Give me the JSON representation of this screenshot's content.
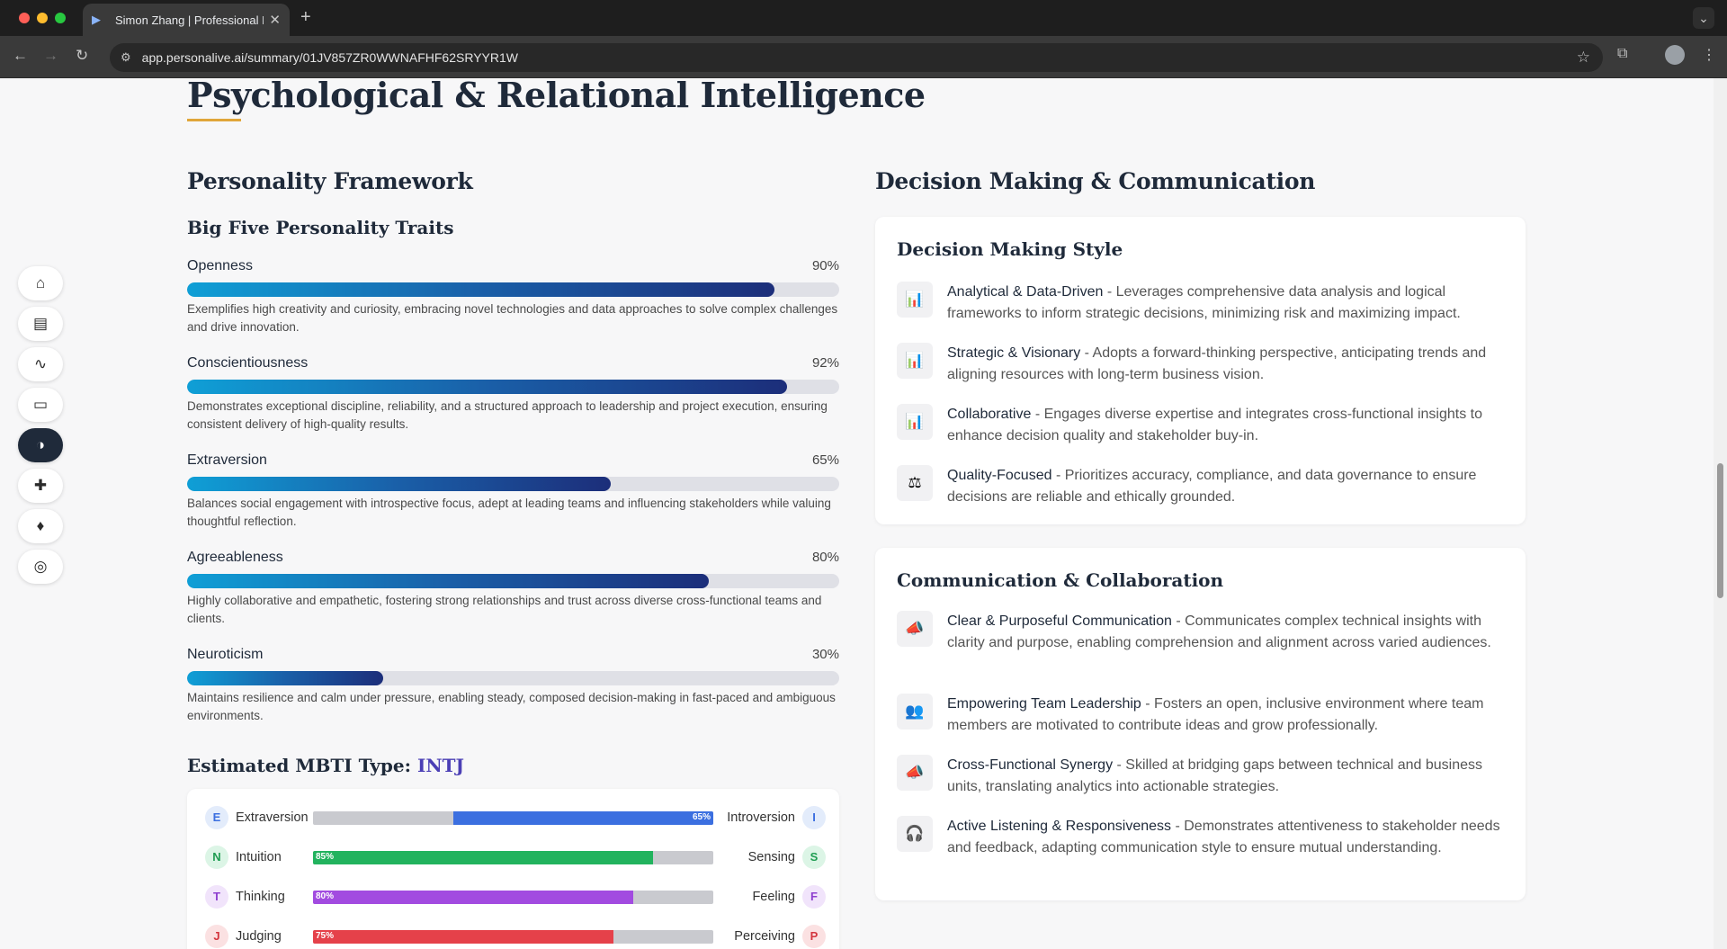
{
  "browser": {
    "tab_title": "Simon Zhang | Professional P",
    "url": "app.personalive.ai/summary/01JV857ZR0WWNAFHF62SRYYR1W"
  },
  "page": {
    "title": "Psychological & Relational Intelligence",
    "left_section_title": "Personality Framework",
    "right_section_title": "Decision Making & Communication",
    "big_five_title": "Big Five Personality Traits",
    "traits": [
      {
        "name": "Openness",
        "pct_label": "90%",
        "value": 90,
        "desc": "Exemplifies high creativity and curiosity, embracing novel technologies and data approaches to solve complex challenges and drive innovation."
      },
      {
        "name": "Conscientiousness",
        "pct_label": "92%",
        "value": 92,
        "desc": "Demonstrates exceptional discipline, reliability, and a structured approach to leadership and project execution, ensuring consistent delivery of high-quality results."
      },
      {
        "name": "Extraversion",
        "pct_label": "65%",
        "value": 65,
        "desc": "Balances social engagement with introspective focus, adept at leading teams and influencing stakeholders while valuing thoughtful reflection."
      },
      {
        "name": "Agreeableness",
        "pct_label": "80%",
        "value": 80,
        "desc": "Highly collaborative and empathetic, fostering strong relationships and trust across diverse cross-functional teams and clients."
      },
      {
        "name": "Neuroticism",
        "pct_label": "30%",
        "value": 30,
        "desc": "Maintains resilience and calm under pressure, enabling steady, composed decision-making in fast-paced and ambiguous environments."
      }
    ],
    "mbti": {
      "title_prefix": "Estimated MBTI Type:",
      "type": "INTJ",
      "rows": [
        {
          "left_letter": "E",
          "left_label": "Extraversion",
          "right_label": "Introversion",
          "right_letter": "I",
          "pct_label": "65%",
          "value": 65,
          "side": "right",
          "color": "#3b6fe0",
          "left_badge_bg": "#e3ecfb",
          "left_badge_fg": "#3b6fe0",
          "right_badge_bg": "#e3ecfb",
          "right_badge_fg": "#3b6fe0"
        },
        {
          "left_letter": "N",
          "left_label": "Intuition",
          "right_label": "Sensing",
          "right_letter": "S",
          "pct_label": "85%",
          "value": 85,
          "side": "left",
          "color": "#22b35e",
          "left_badge_bg": "#dcf5e6",
          "left_badge_fg": "#1f9d52",
          "right_badge_bg": "#dcf5e6",
          "right_badge_fg": "#1f9d52"
        },
        {
          "left_letter": "T",
          "left_label": "Thinking",
          "right_label": "Feeling",
          "right_letter": "F",
          "pct_label": "80%",
          "value": 80,
          "side": "left",
          "color": "#a24be0",
          "left_badge_bg": "#f1e4fb",
          "left_badge_fg": "#8e3fcf",
          "right_badge_bg": "#f1e4fb",
          "right_badge_fg": "#8e3fcf"
        },
        {
          "left_letter": "J",
          "left_label": "Judging",
          "right_label": "Perceiving",
          "right_letter": "P",
          "pct_label": "75%",
          "value": 75,
          "side": "left",
          "color": "#e5414a",
          "left_badge_bg": "#fbe1e2",
          "left_badge_fg": "#d3353e",
          "right_badge_bg": "#fbe1e2",
          "right_badge_fg": "#d3353e"
        }
      ]
    },
    "decision_card": {
      "title": "Decision Making Style",
      "items": [
        {
          "icon": "📊",
          "icon_name": "bar-chart-icon",
          "name": "Analytical & Data-Driven",
          "desc": " - Leverages comprehensive data analysis and logical frameworks to inform strategic decisions, minimizing risk and maximizing impact."
        },
        {
          "icon": "📊",
          "icon_name": "bar-chart-icon",
          "name": "Strategic & Visionary",
          "desc": " - Adopts a forward-thinking perspective, anticipating trends and aligning resources with long-term business vision."
        },
        {
          "icon": "📊",
          "icon_name": "bar-chart-icon",
          "name": "Collaborative",
          "desc": " - Engages diverse expertise and integrates cross-functional insights to enhance decision quality and stakeholder buy-in."
        },
        {
          "icon": "⚖",
          "icon_name": "scales-icon",
          "name": "Quality-Focused",
          "desc": " - Prioritizes accuracy, compliance, and data governance to ensure decisions are reliable and ethically grounded."
        }
      ]
    },
    "comm_card": {
      "title": "Communication & Collaboration",
      "items": [
        {
          "icon": "📣",
          "icon_name": "megaphone-icon",
          "name": "Clear & Purposeful Communication",
          "desc": " - Communicates complex technical insights with clarity and purpose, enabling comprehension and alignment across varied audiences."
        },
        {
          "icon": "👥",
          "icon_name": "people-icon",
          "name": "Empowering Team Leadership",
          "desc": " - Fosters an open, inclusive environment where team members are motivated to contribute ideas and grow professionally."
        },
        {
          "icon": "📣",
          "icon_name": "megaphone-icon",
          "name": "Cross-Functional Synergy",
          "desc": " - Skilled at bridging gaps between technical and business units, translating analytics into actionable strategies."
        },
        {
          "icon": "🎧",
          "icon_name": "headphones-icon",
          "name": "Active Listening & Responsiveness",
          "desc": " - Demonstrates attentiveness to stakeholder needs and feedback, adapting communication style to ensure mutual understanding."
        }
      ]
    }
  },
  "sidenav": [
    {
      "icon": "⌂",
      "name": "home-icon",
      "active": false
    },
    {
      "icon": "▤",
      "name": "document-icon",
      "active": false
    },
    {
      "icon": "∿",
      "name": "chart-line-icon",
      "active": false
    },
    {
      "icon": "▭",
      "name": "id-card-icon",
      "active": false
    },
    {
      "icon": "◑",
      "name": "brain-icon",
      "active": true
    },
    {
      "icon": "✚",
      "name": "puzzle-icon",
      "active": false
    },
    {
      "icon": "♦",
      "name": "lightbulb-icon",
      "active": false
    },
    {
      "icon": "◎",
      "name": "target-icon",
      "active": false
    }
  ]
}
